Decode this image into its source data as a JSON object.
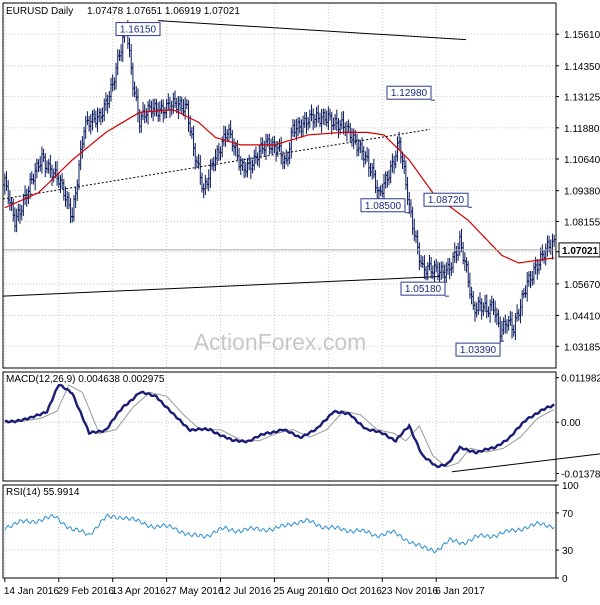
{
  "chart_data": [
    {
      "type": "ohlc",
      "title": "EURUSD Daily",
      "ohlc_readout": "1.07478 1.07651 1.06919 1.07021",
      "last_price": "1.07021",
      "ylim": [
        1.0232,
        1.1685
      ],
      "y_ticks": [
        "1.15610",
        "1.14350",
        "1.13125",
        "1.11880",
        "1.10640",
        "1.09380",
        "1.08155",
        "1.06950",
        "1.05670",
        "1.04410",
        "1.03185"
      ],
      "x_ticks": [
        "14 Jan 2016",
        "29 Feb 2016",
        "13 Apr 2016",
        "27 May 2016",
        "12 Jul 2016",
        "25 Aug 2016",
        "10 Oct 2016",
        "23 Nov 2016",
        "6 Jan 2017"
      ],
      "annotations": [
        {
          "label": "1.16150",
          "value": 1.1615
        },
        {
          "label": "1.12980",
          "value": 1.1298
        },
        {
          "label": "1.08500",
          "value": 1.085
        },
        {
          "label": "1.08720",
          "value": 1.0872
        },
        {
          "label": "1.05180",
          "value": 1.0518
        },
        {
          "label": "1.03390",
          "value": 1.0339
        }
      ],
      "anchors": [
        [
          0,
          1.096
        ],
        [
          6,
          1.083
        ],
        [
          14,
          1.093
        ],
        [
          22,
          1.108
        ],
        [
          32,
          1.097
        ],
        [
          40,
          1.085
        ],
        [
          47,
          1.118
        ],
        [
          56,
          1.124
        ],
        [
          64,
          1.135
        ],
        [
          69,
          1.15
        ],
        [
          72,
          1.16
        ],
        [
          76,
          1.138
        ],
        [
          80,
          1.121
        ],
        [
          88,
          1.127
        ],
        [
          96,
          1.127
        ],
        [
          102,
          1.127
        ],
        [
          108,
          1.128
        ],
        [
          112,
          1.111
        ],
        [
          118,
          1.092
        ],
        [
          124,
          1.107
        ],
        [
          132,
          1.117
        ],
        [
          140,
          1.104
        ],
        [
          148,
          1.105
        ],
        [
          156,
          1.113
        ],
        [
          162,
          1.112
        ],
        [
          167,
          1.103
        ],
        [
          171,
          1.118
        ],
        [
          180,
          1.123
        ],
        [
          186,
          1.121
        ],
        [
          192,
          1.124
        ],
        [
          200,
          1.119
        ],
        [
          206,
          1.115
        ],
        [
          212,
          1.111
        ],
        [
          218,
          1.1
        ],
        [
          222,
          1.091
        ],
        [
          226,
          1.099
        ],
        [
          230,
          1.105
        ],
        [
          234,
          1.112
        ],
        [
          237,
          1.1
        ],
        [
          240,
          1.087
        ],
        [
          244,
          1.075
        ],
        [
          248,
          1.063
        ],
        [
          254,
          1.061
        ],
        [
          262,
          1.063
        ],
        [
          266,
          1.066
        ],
        [
          270,
          1.072
        ],
        [
          274,
          1.062
        ],
        [
          278,
          1.048
        ],
        [
          282,
          1.049
        ],
        [
          286,
          1.045
        ],
        [
          290,
          1.047
        ],
        [
          294,
          1.039
        ],
        [
          298,
          1.043
        ],
        [
          302,
          1.038
        ],
        [
          306,
          1.047
        ],
        [
          310,
          1.058
        ],
        [
          314,
          1.063
        ],
        [
          318,
          1.066
        ],
        [
          322,
          1.07
        ],
        [
          326,
          1.073
        ]
      ],
      "sma_anchors": [
        [
          0,
          1.087
        ],
        [
          20,
          1.093
        ],
        [
          40,
          1.106
        ],
        [
          60,
          1.117
        ],
        [
          80,
          1.125
        ],
        [
          100,
          1.126
        ],
        [
          115,
          1.121
        ],
        [
          125,
          1.115
        ],
        [
          140,
          1.112
        ],
        [
          160,
          1.112
        ],
        [
          180,
          1.116
        ],
        [
          200,
          1.117
        ],
        [
          215,
          1.117
        ],
        [
          225,
          1.116
        ],
        [
          240,
          1.106
        ],
        [
          255,
          1.092
        ],
        [
          275,
          1.082
        ],
        [
          285,
          1.075
        ],
        [
          295,
          1.068
        ],
        [
          305,
          1.065
        ],
        [
          315,
          1.066
        ],
        [
          326,
          1.067
        ]
      ],
      "trendlines": [
        {
          "from": [
            "14 Jan 2016",
            1.0905
          ],
          "to": [
            "6 Jan 2017",
            1.1182
          ]
        },
        {
          "from": [
            "13 Apr 2016",
            1.1615
          ],
          "to": [
            "6 Jan 2017",
            1.1539
          ]
        },
        {
          "from": [
            "14 Jan 2016",
            1.0518
          ],
          "to": [
            "10 Oct 2016",
            1.0596
          ]
        }
      ]
    },
    {
      "type": "line",
      "title": "MACD(12,26,9) 0.004638 0.002975",
      "ylim": [
        -0.0158,
        0.0135
      ],
      "y_ticks": [
        "0.011982",
        "0.00",
        "-0.013788"
      ],
      "series": [
        {
          "name": "MACD"
        },
        {
          "name": "Signal"
        }
      ],
      "anchors": [
        [
          0,
          0.0
        ],
        [
          15,
          0.001
        ],
        [
          25,
          0.003
        ],
        [
          32,
          0.01
        ],
        [
          40,
          0.008
        ],
        [
          50,
          -0.003
        ],
        [
          60,
          -0.002
        ],
        [
          70,
          0.004
        ],
        [
          80,
          0.008
        ],
        [
          90,
          0.007
        ],
        [
          100,
          0.002
        ],
        [
          110,
          -0.002
        ],
        [
          122,
          -0.002
        ],
        [
          135,
          -0.005
        ],
        [
          145,
          -0.005
        ],
        [
          155,
          -0.003
        ],
        [
          165,
          -0.002
        ],
        [
          175,
          -0.004
        ],
        [
          185,
          -0.002
        ],
        [
          195,
          0.003
        ],
        [
          205,
          0.002
        ],
        [
          215,
          -0.002
        ],
        [
          225,
          -0.003
        ],
        [
          232,
          -0.005
        ],
        [
          240,
          -0.001
        ],
        [
          248,
          -0.009
        ],
        [
          256,
          -0.012
        ],
        [
          263,
          -0.011
        ],
        [
          270,
          -0.007
        ],
        [
          280,
          -0.008
        ],
        [
          290,
          -0.007
        ],
        [
          300,
          -0.004
        ],
        [
          310,
          0.001
        ],
        [
          318,
          0.003
        ],
        [
          326,
          0.0046
        ]
      ],
      "trendline": {
        "from": [
          "23 Nov 2016",
          -0.0133
        ],
        "to": [
          "6 Jan 2017",
          -0.0085
        ]
      }
    },
    {
      "type": "line",
      "title": "RSI(14) 55.9914",
      "ylim": [
        0,
        100
      ],
      "y_ticks": [
        "100",
        "70",
        "30",
        "0"
      ],
      "levels": [
        70,
        30
      ],
      "anchors": [
        [
          0,
          55
        ],
        [
          10,
          60
        ],
        [
          20,
          62
        ],
        [
          30,
          66
        ],
        [
          40,
          52
        ],
        [
          50,
          47
        ],
        [
          60,
          65
        ],
        [
          70,
          66
        ],
        [
          80,
          60
        ],
        [
          90,
          55
        ],
        [
          100,
          55
        ],
        [
          110,
          45
        ],
        [
          120,
          46
        ],
        [
          130,
          53
        ],
        [
          140,
          51
        ],
        [
          150,
          53
        ],
        [
          160,
          52
        ],
        [
          170,
          59
        ],
        [
          180,
          61
        ],
        [
          190,
          55
        ],
        [
          200,
          52
        ],
        [
          210,
          51
        ],
        [
          220,
          46
        ],
        [
          230,
          49
        ],
        [
          240,
          40
        ],
        [
          248,
          32
        ],
        [
          256,
          30
        ],
        [
          264,
          40
        ],
        [
          272,
          38
        ],
        [
          280,
          44
        ],
        [
          290,
          46
        ],
        [
          300,
          50
        ],
        [
          310,
          55
        ],
        [
          318,
          58
        ],
        [
          326,
          56
        ]
      ]
    }
  ],
  "watermark": "ActionForex.com",
  "colors": {
    "bars": "#0a1a5c",
    "sma": "#d40000",
    "macd": "#1c1c78",
    "signal": "#999999",
    "rsi": "#2d8fd4",
    "grid": "#c8c8c8",
    "frame": "#000000"
  }
}
